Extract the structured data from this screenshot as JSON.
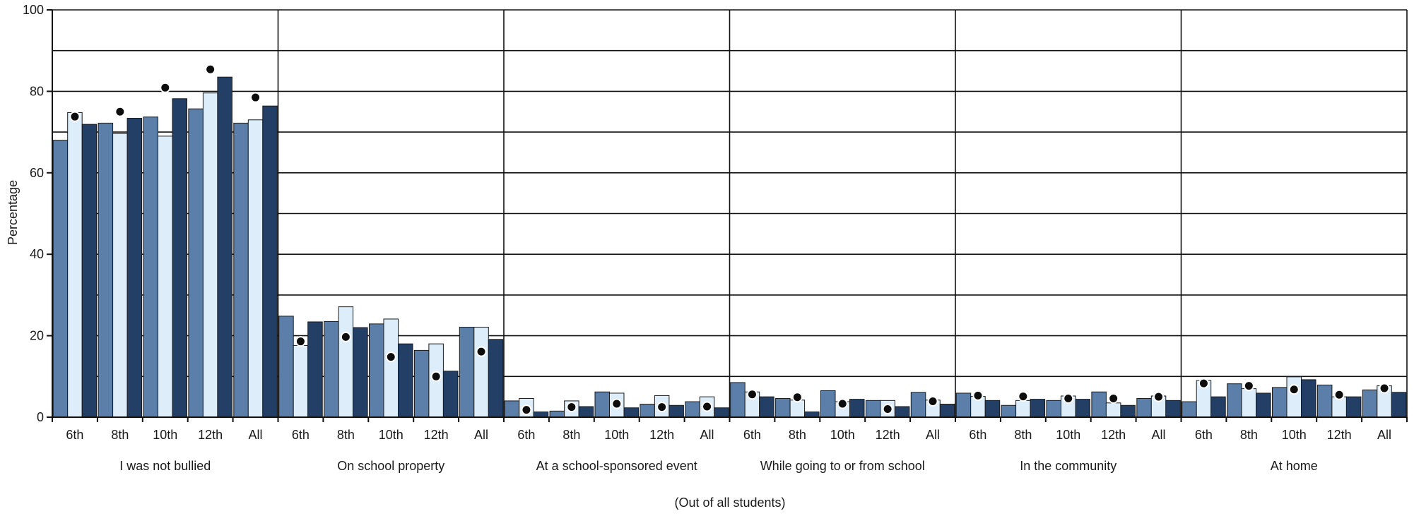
{
  "chart_data": {
    "type": "bar",
    "ylabel": "Percentage",
    "xlabel": "(Out of all students)",
    "ylim": [
      0,
      100
    ],
    "yticks": [
      0,
      20,
      40,
      60,
      80,
      100
    ],
    "grid": true,
    "series_colors": [
      "#5b7fa8",
      "#ddeefa",
      "#233f66"
    ],
    "marker_color": "#0d0d0d",
    "groups": [
      {
        "label": "I was not bullied",
        "categories": [
          "6th",
          "8th",
          "10th",
          "12th",
          "All"
        ],
        "series": [
          [
            68.0,
            72.2,
            73.7,
            75.7,
            72.2
          ],
          [
            74.8,
            69.6,
            69.0,
            79.6,
            73.0
          ],
          [
            71.9,
            73.4,
            78.2,
            83.5,
            76.4
          ]
        ],
        "markers": [
          73.8,
          75.0,
          80.9,
          85.4,
          78.5
        ]
      },
      {
        "label": "On school property",
        "categories": [
          "6th",
          "8th",
          "10th",
          "12th",
          "All"
        ],
        "series": [
          [
            24.8,
            23.5,
            22.9,
            16.4,
            22.1
          ],
          [
            17.6,
            27.1,
            24.1,
            18.0,
            22.1
          ],
          [
            23.4,
            22.0,
            18.0,
            11.3,
            19.1
          ]
        ],
        "markers": [
          18.6,
          19.7,
          14.8,
          10.0,
          16.1
        ]
      },
      {
        "label": "At a school-sponsored event",
        "categories": [
          "6th",
          "8th",
          "10th",
          "12th",
          "All"
        ],
        "series": [
          [
            4.0,
            1.5,
            6.2,
            3.2,
            3.8
          ],
          [
            4.6,
            4.0,
            5.9,
            5.3,
            5.0
          ],
          [
            1.3,
            2.6,
            2.3,
            2.9,
            2.3
          ]
        ],
        "markers": [
          1.8,
          2.5,
          3.3,
          2.5,
          2.6
        ]
      },
      {
        "label": "While going to or from school",
        "categories": [
          "6th",
          "8th",
          "10th",
          "12th",
          "All"
        ],
        "series": [
          [
            8.5,
            4.6,
            6.5,
            4.1,
            6.1
          ],
          [
            6.2,
            4.2,
            3.8,
            4.1,
            4.2
          ],
          [
            5.0,
            1.3,
            4.4,
            2.6,
            3.2
          ]
        ],
        "markers": [
          5.6,
          4.9,
          3.3,
          2.0,
          3.9
        ]
      },
      {
        "label": "In the community",
        "categories": [
          "6th",
          "8th",
          "10th",
          "12th",
          "All"
        ],
        "series": [
          [
            5.9,
            2.9,
            4.1,
            6.2,
            4.6
          ],
          [
            5.1,
            4.1,
            5.2,
            3.5,
            5.2
          ],
          [
            4.1,
            4.4,
            4.4,
            2.9,
            4.1
          ]
        ],
        "markers": [
          5.3,
          5.1,
          4.6,
          4.6,
          5.0
        ]
      },
      {
        "label": "At home",
        "categories": [
          "6th",
          "8th",
          "10th",
          "12th",
          "All"
        ],
        "series": [
          [
            3.8,
            8.2,
            7.3,
            7.9,
            6.7
          ],
          [
            9.0,
            7.0,
            9.9,
            5.0,
            7.7
          ],
          [
            5.0,
            5.9,
            9.2,
            5.0,
            6.1
          ]
        ],
        "markers": [
          8.3,
          7.7,
          6.8,
          5.5,
          7.1
        ]
      }
    ]
  }
}
